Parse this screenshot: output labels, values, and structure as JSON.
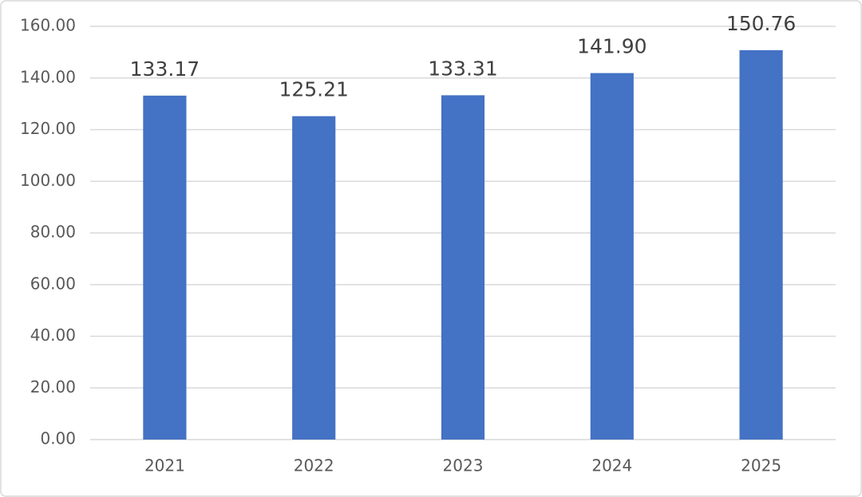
{
  "chart_data": {
    "type": "bar",
    "categories": [
      "2021",
      "2022",
      "2023",
      "2024",
      "2025"
    ],
    "values": [
      133.17,
      125.21,
      133.31,
      141.9,
      150.76
    ],
    "value_labels": [
      "133.17",
      "125.21",
      "133.31",
      "141.90",
      "150.76"
    ],
    "color": "#4472c4",
    "ylim": [
      0,
      160
    ],
    "yticks": [
      {
        "value": 0,
        "label": "0.00"
      },
      {
        "value": 20,
        "label": "20.00"
      },
      {
        "value": 40,
        "label": "40.00"
      },
      {
        "value": 60,
        "label": "60.00"
      },
      {
        "value": 80,
        "label": "80.00"
      },
      {
        "value": 100,
        "label": "100.00"
      },
      {
        "value": 120,
        "label": "120.00"
      },
      {
        "value": 140,
        "label": "140.00"
      },
      {
        "value": 160,
        "label": "160.00"
      }
    ],
    "grid": true
  }
}
